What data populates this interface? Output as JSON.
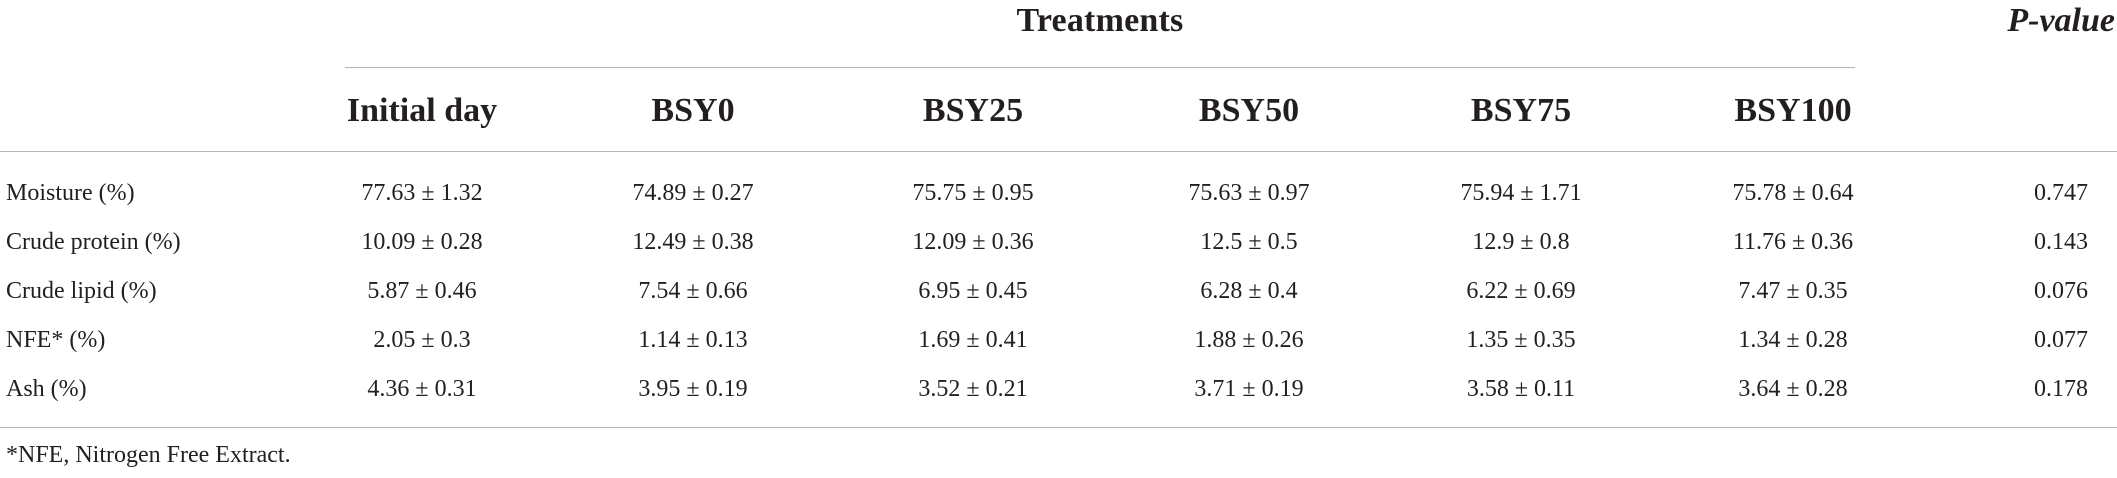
{
  "table": {
    "group_header": "Treatments",
    "pvalue_header": "P-value",
    "columns": [
      "Initial day",
      "BSY0",
      "BSY25",
      "BSY50",
      "BSY75",
      "BSY100"
    ],
    "rows": [
      {
        "label": "Moisture (%)",
        "values": [
          "77.63 ± 1.32",
          "74.89 ± 0.27",
          "75.75 ± 0.95",
          "75.63 ± 0.97",
          "75.94 ± 1.71",
          "75.78 ± 0.64"
        ],
        "p": "0.747"
      },
      {
        "label": "Crude protein (%)",
        "values": [
          "10.09 ± 0.28",
          "12.49 ± 0.38",
          "12.09 ± 0.36",
          "12.5 ± 0.5",
          "12.9 ± 0.8",
          "11.76 ± 0.36"
        ],
        "p": "0.143"
      },
      {
        "label": "Crude lipid (%)",
        "values": [
          "5.87 ± 0.46",
          "7.54 ± 0.66",
          "6.95 ± 0.45",
          "6.28 ± 0.4",
          "6.22 ± 0.69",
          "7.47 ± 0.35"
        ],
        "p": "0.076"
      },
      {
        "label": "NFE* (%)",
        "values": [
          "2.05 ± 0.3",
          "1.14 ± 0.13",
          "1.69 ± 0.41",
          "1.88 ± 0.26",
          "1.35 ± 0.35",
          "1.34 ± 0.28"
        ],
        "p": "0.077"
      },
      {
        "label": "Ash (%)",
        "values": [
          "4.36 ± 0.31",
          "3.95 ± 0.19",
          "3.52 ± 0.21",
          "3.71 ± 0.19",
          "3.58 ± 0.11",
          "3.64 ± 0.28"
        ],
        "p": "0.178"
      }
    ],
    "footnote": "*NFE, Nitrogen Free Extract."
  }
}
